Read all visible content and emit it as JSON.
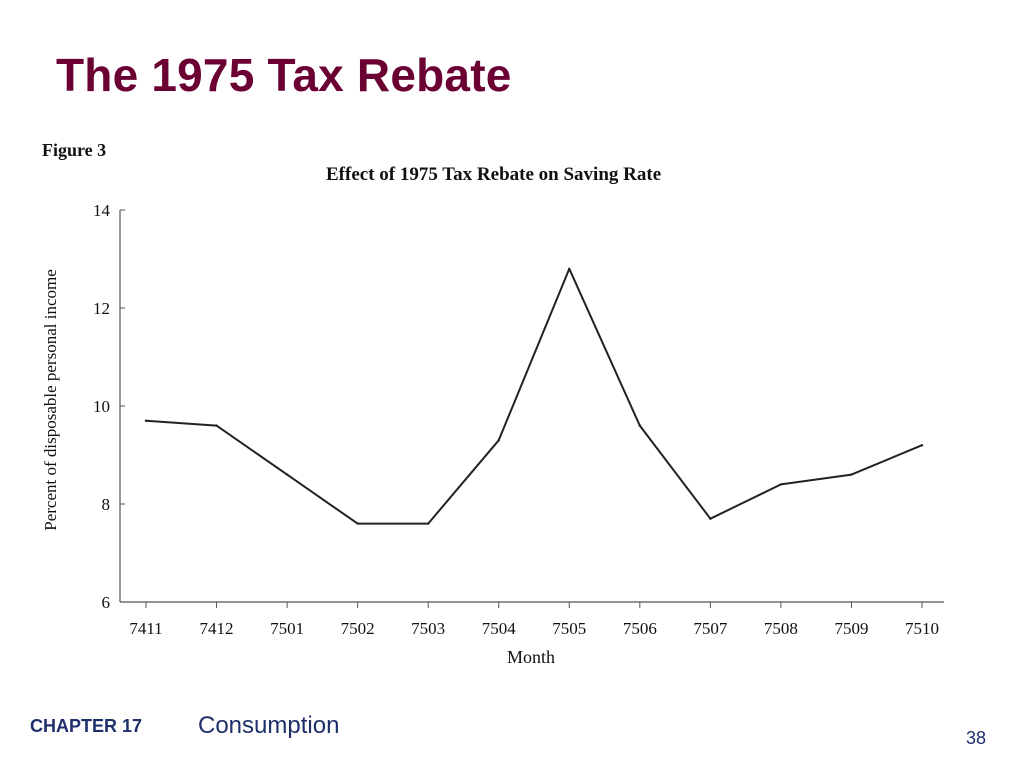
{
  "slide": {
    "title": "The 1975 Tax Rebate",
    "figure_label": "Figure 3",
    "footer_chapter": "CHAPTER 17",
    "footer_topic": "Consumption",
    "page_number": "38"
  },
  "colors": {
    "title": "#6b0033",
    "footer": "#1f2f6b",
    "line": "#222222"
  },
  "chart_data": {
    "type": "line",
    "title": "Effect of 1975 Tax Rebate on Saving Rate",
    "xlabel": "Month",
    "ylabel": "Percent of disposable personal income",
    "categories": [
      "7411",
      "7412",
      "7501",
      "7502",
      "7503",
      "7504",
      "7505",
      "7506",
      "7507",
      "7508",
      "7509",
      "7510"
    ],
    "series": [
      {
        "values": [
          9.7,
          9.6,
          8.6,
          7.6,
          7.6,
          9.3,
          12.8,
          9.6,
          7.7,
          8.4,
          8.6,
          9.2
        ]
      }
    ],
    "ylim": [
      6,
      14
    ],
    "yticks": [
      6,
      8,
      10,
      12,
      14
    ],
    "grid": false
  }
}
